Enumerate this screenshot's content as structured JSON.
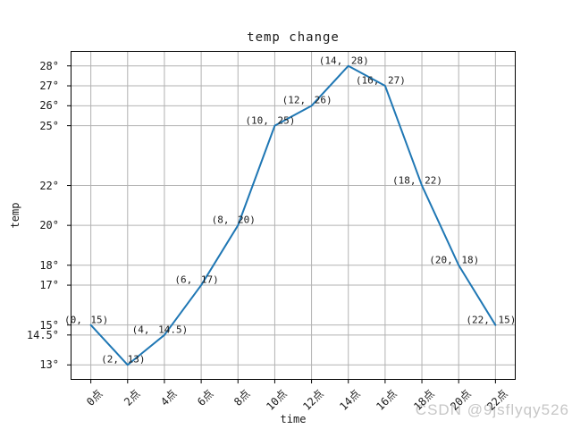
{
  "chart_data": {
    "type": "line",
    "title": "temp change",
    "xlabel": "time",
    "ylabel": "temp",
    "x": [
      0,
      2,
      4,
      6,
      8,
      10,
      12,
      14,
      16,
      18,
      20,
      22
    ],
    "y": [
      15,
      13,
      14.5,
      17,
      20,
      25,
      26,
      28,
      27,
      22,
      18,
      15
    ],
    "x_tick_labels": [
      "0点",
      "2点",
      "4点",
      "6点",
      "8点",
      "10点",
      "12点",
      "14点",
      "16点",
      "18点",
      "20点",
      "22点"
    ],
    "y_tick_values": [
      13,
      14.5,
      15,
      17,
      18,
      20,
      22,
      25,
      26,
      27,
      28
    ],
    "y_tick_labels": [
      "13°",
      "14.5°",
      "15°",
      "17°",
      "18°",
      "20°",
      "22°",
      "25°",
      "26°",
      "27°",
      "28°"
    ],
    "annotations": [
      "(0, 15)",
      "(2, 13)",
      "(4, 14.5)",
      "(6, 17)",
      "(8, 20)",
      "(10, 25)",
      "(12, 26)",
      "(14, 28)",
      "(16, 27)",
      "(18, 22)",
      "(20, 18)",
      "(22, 15)"
    ],
    "xlim": [
      -1.1,
      23.1
    ],
    "ylim": [
      12.25,
      28.75
    ],
    "grid": true,
    "legend": false,
    "line_color": "#1f77b4",
    "grid_color": "#b2b2b2",
    "spine_color": "#000000",
    "text_color": "#1a1a1a"
  },
  "watermark": {
    "text": "CSDN @9jsflyqy526",
    "color": "#c6c6c6"
  }
}
